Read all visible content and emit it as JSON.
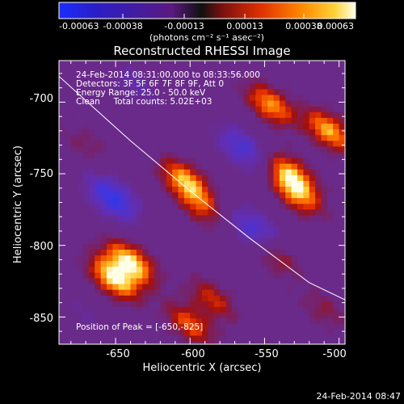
{
  "colorbar": {
    "ticks": [
      "-0.00063",
      "-0.00038",
      "-0.00013",
      "0.00013",
      "0.00038",
      "0.00063"
    ],
    "units": "(photons cm⁻² s⁻¹ asec⁻²)"
  },
  "title": "Reconstructed RHESSI Image",
  "info_lines": [
    "24-Feb-2014 08:31:00.000 to 08:33:56.000",
    "Detectors: 3F 5F 6F 7F 8F 9F, Att 0",
    "Energy Range: 25.0 - 50.0 keV",
    "Clean     Total counts: 5.02E+03"
  ],
  "peak_label": "Position of Peak = [-650,-825]",
  "x_axis": {
    "label": "Heliocentric X (arcsec)",
    "ticks": [
      "-650",
      "-600",
      "-550",
      "-500"
    ],
    "range": [
      -688,
      -496
    ]
  },
  "y_axis": {
    "label": "Heliocentric Y (arcsec)",
    "ticks": [
      "-700",
      "-750",
      "-800",
      "-850"
    ],
    "range": [
      -671,
      -869
    ]
  },
  "timestamp": "24-Feb-2014 08:47",
  "colors": {
    "background": "#000000",
    "colormap": [
      "#000000",
      "#2a00c8",
      "#1a2cff",
      "#3a36e6",
      "#5f2fb8",
      "#6a2a8a",
      "#7a2060",
      "#a01010",
      "#e33000",
      "#ff7a00",
      "#ffd23a",
      "#ffffe8"
    ]
  },
  "sources": [
    {
      "x": -640,
      "y": -812,
      "w": 0.99
    },
    {
      "x": -651,
      "y": -823,
      "w": 1.0
    },
    {
      "x": -603,
      "y": -755,
      "w": 0.8
    },
    {
      "x": -593,
      "y": -772,
      "w": 0.48
    },
    {
      "x": -533,
      "y": -750,
      "w": 0.78
    },
    {
      "x": -528,
      "y": -764,
      "w": 0.7
    },
    {
      "x": -546,
      "y": -702,
      "w": 0.74
    },
    {
      "x": -507,
      "y": -720,
      "w": 0.8
    },
    {
      "x": -543,
      "y": -807,
      "w": 0.45
    },
    {
      "x": -585,
      "y": -838,
      "w": 0.45
    },
    {
      "x": -600,
      "y": -855,
      "w": 0.58
    },
    {
      "x": -670,
      "y": -730,
      "w": 0.2
    },
    {
      "x": -510,
      "y": -845,
      "w": 0.25
    }
  ],
  "sinks": [
    {
      "x": -565,
      "y": -732,
      "w": 0.55
    },
    {
      "x": -556,
      "y": -790,
      "w": 0.6
    },
    {
      "x": -652,
      "y": -767,
      "w": 0.7
    },
    {
      "x": -637,
      "y": -688,
      "w": 0.3
    },
    {
      "x": -670,
      "y": -848,
      "w": 0.2
    }
  ],
  "limb_curve": [
    [
      -688,
      -682
    ],
    [
      -640,
      -727
    ],
    [
      -600,
      -762
    ],
    [
      -560,
      -795
    ],
    [
      -520,
      -826
    ],
    [
      -496,
      -838
    ]
  ]
}
